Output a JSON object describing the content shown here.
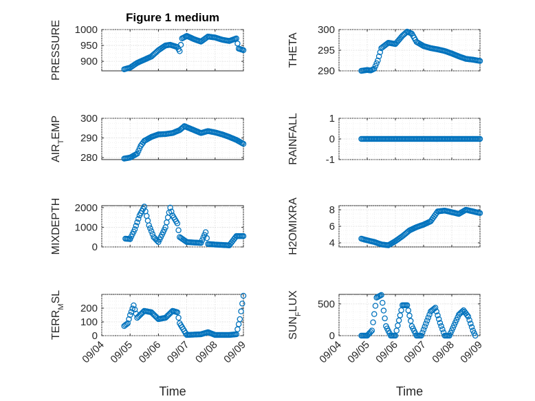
{
  "figure": {
    "title": "Figure 1 medium",
    "marker_color": "#0072BD"
  },
  "chart_data": [
    {
      "type": "scatter",
      "title": "Figure 1 medium",
      "ylabel": "PRESSURE",
      "ylim": [
        870,
        1000
      ],
      "yticks": [
        900,
        950,
        1000
      ],
      "xlim": [
        "09/04",
        "09/09"
      ],
      "grid": true,
      "x": [
        "09/04 19:00",
        "09/05 00:00",
        "09/05 06:00",
        "09/05 12:00",
        "09/05 18:00",
        "09/06 00:00",
        "09/06 06:00",
        "09/06 10:00",
        "09/06 16:00",
        "09/06 18:00",
        "09/06 20:00",
        "09/07 00:00",
        "09/07 06:00",
        "09/07 12:00",
        "09/07 18:00",
        "09/08 00:00",
        "09/08 06:00",
        "09/08 12:00",
        "09/08 18:00",
        "09/08 20:00",
        "09/09 00:00"
      ],
      "y": [
        875,
        880,
        895,
        905,
        915,
        935,
        950,
        952,
        945,
        932,
        972,
        980,
        970,
        962,
        978,
        975,
        968,
        964,
        972,
        940,
        935
      ]
    },
    {
      "type": "scatter",
      "title": "",
      "ylabel": "THETA",
      "ylim": [
        290,
        300
      ],
      "yticks": [
        290,
        295,
        300
      ],
      "xlim": [
        "09/04",
        "09/09"
      ],
      "grid": true,
      "x": [
        "09/04 19:00",
        "09/05 00:00",
        "09/05 03:00",
        "09/05 06:00",
        "09/05 09:00",
        "09/05 12:00",
        "09/05 18:00",
        "09/06 00:00",
        "09/06 06:00",
        "09/06 10:00",
        "09/06 14:00",
        "09/06 18:00",
        "09/07 00:00",
        "09/07 06:00",
        "09/07 12:00",
        "09/07 18:00",
        "09/08 00:00",
        "09/08 06:00",
        "09/08 12:00",
        "09/08 18:00",
        "09/09 00:00"
      ],
      "y": [
        290,
        290.2,
        290.1,
        290.5,
        292.5,
        295.5,
        296.8,
        296.5,
        298.5,
        299.5,
        299,
        297,
        296,
        295.5,
        295.2,
        294.8,
        294.2,
        293.5,
        292.9,
        292.7,
        292.4
      ]
    },
    {
      "type": "scatter",
      "title": "",
      "ylabel": "AIR_TEMP",
      "ylim": [
        279,
        300
      ],
      "yticks": [
        280,
        290,
        300
      ],
      "xlim": [
        "09/04",
        "09/09"
      ],
      "grid": true,
      "x": [
        "09/04 19:00",
        "09/05 00:00",
        "09/05 06:00",
        "09/05 09:00",
        "09/05 12:00",
        "09/05 18:00",
        "09/06 00:00",
        "09/06 06:00",
        "09/06 12:00",
        "09/06 18:00",
        "09/06 22:00",
        "09/07 06:00",
        "09/07 12:00",
        "09/07 18:00",
        "09/08 00:00",
        "09/08 06:00",
        "09/08 12:00",
        "09/08 18:00",
        "09/09 00:00"
      ],
      "y": [
        279.5,
        280,
        282,
        286,
        288.5,
        290.5,
        291.8,
        292,
        292.5,
        294,
        296,
        294,
        292.5,
        293.5,
        292.8,
        291.8,
        290.5,
        289,
        287
      ]
    },
    {
      "type": "scatter",
      "title": "",
      "ylabel": "RAINFALL",
      "ylim": [
        -1,
        1
      ],
      "yticks": [
        -1,
        0,
        1
      ],
      "xlim": [
        "09/04",
        "09/09"
      ],
      "grid": true,
      "x": [
        "09/04 19:00",
        "09/05 12:00",
        "09/06 00:00",
        "09/06 12:00",
        "09/07 00:00",
        "09/07 12:00",
        "09/08 00:00",
        "09/08 12:00",
        "09/09 00:00"
      ],
      "y": [
        0,
        0,
        0,
        0,
        0,
        0,
        0,
        0,
        0
      ]
    },
    {
      "type": "scatter",
      "title": "",
      "ylabel": "MIXDEPTH",
      "ylim": [
        0,
        2100
      ],
      "yticks": [
        0,
        1000,
        2000
      ],
      "xlim": [
        "09/04",
        "09/09"
      ],
      "grid": true,
      "x": [
        "09/04 20:00",
        "09/05 00:00",
        "09/05 04:00",
        "09/05 08:00",
        "09/05 12:00",
        "09/05 16:00",
        "09/05 20:00",
        "09/06 00:00",
        "09/06 06:00",
        "09/06 10:00",
        "09/06 12:00",
        "09/06 16:00",
        "09/06 18:00",
        "09/07 00:00",
        "09/07 12:00",
        "09/07 16:00",
        "09/07 18:00",
        "09/08 00:00",
        "09/08 12:00",
        "09/08 18:00",
        "09/09 00:00"
      ],
      "y": [
        420,
        400,
        900,
        1600,
        2050,
        1100,
        500,
        250,
        1000,
        2000,
        1600,
        1200,
        500,
        250,
        200,
        750,
        150,
        120,
        80,
        550,
        550
      ]
    },
    {
      "type": "scatter",
      "title": "",
      "ylabel": "H2OMIXRA",
      "ylim": [
        3.5,
        8.5
      ],
      "yticks": [
        4,
        6,
        8
      ],
      "xlim": [
        "09/04",
        "09/09"
      ],
      "grid": true,
      "x": [
        "09/04 19:00",
        "09/05 00:00",
        "09/05 06:00",
        "09/05 12:00",
        "09/05 18:00",
        "09/06 00:00",
        "09/06 06:00",
        "09/06 12:00",
        "09/06 18:00",
        "09/07 00:00",
        "09/07 06:00",
        "09/07 12:00",
        "09/07 18:00",
        "09/08 00:00",
        "09/08 06:00",
        "09/08 12:00",
        "09/08 18:00",
        "09/09 00:00"
      ],
      "y": [
        4.5,
        4.3,
        4.1,
        3.8,
        3.7,
        4.2,
        4.8,
        5.5,
        5.9,
        6.2,
        6.6,
        7.8,
        7.9,
        7.7,
        7.5,
        8.0,
        7.8,
        7.6
      ]
    },
    {
      "type": "scatter",
      "title": "",
      "ylabel": "TERR_MSL",
      "ylim": [
        0,
        300
      ],
      "yticks": [
        0,
        100,
        200
      ],
      "xlim": [
        "09/04",
        "09/09"
      ],
      "grid": true,
      "x": [
        "09/04 19:00",
        "09/04 22:00",
        "09/05 00:00",
        "09/05 03:00",
        "09/05 06:00",
        "09/05 12:00",
        "09/05 18:00",
        "09/06 00:00",
        "09/06 06:00",
        "09/06 12:00",
        "09/06 16:00",
        "09/06 18:00",
        "09/07 00:00",
        "09/07 12:00",
        "09/07 18:00",
        "09/08 00:00",
        "09/08 12:00",
        "09/08 18:00",
        "09/08 21:00",
        "09/09 00:00"
      ],
      "y": [
        70,
        90,
        150,
        220,
        130,
        180,
        170,
        120,
        130,
        180,
        170,
        90,
        5,
        10,
        25,
        5,
        5,
        10,
        120,
        290
      ]
    },
    {
      "type": "scatter",
      "title": "",
      "ylabel": "SUN_FLUX",
      "ylim": [
        0,
        650
      ],
      "yticks": [
        0,
        500
      ],
      "xlim": [
        "09/04",
        "09/09"
      ],
      "grid": true,
      "x": [
        "09/04 19:00",
        "09/05 00:00",
        "09/05 04:00",
        "09/05 08:00",
        "09/05 12:00",
        "09/05 16:00",
        "09/05 20:00",
        "09/06 00:00",
        "09/06 06:00",
        "09/06 10:00",
        "09/06 14:00",
        "09/06 18:00",
        "09/06 22:00",
        "09/07 06:00",
        "09/07 10:00",
        "09/07 14:00",
        "09/07 18:00",
        "09/07 22:00",
        "09/08 06:00",
        "09/08 10:00",
        "09/08 14:00",
        "09/08 18:00",
        "09/08 20:00"
      ],
      "y": [
        0,
        0,
        80,
        600,
        640,
        150,
        0,
        0,
        480,
        480,
        150,
        0,
        0,
        380,
        440,
        200,
        0,
        0,
        330,
        400,
        300,
        80,
        0
      ]
    }
  ],
  "xaxis": {
    "label": "Time",
    "ticks": [
      "09/04",
      "09/05",
      "09/06",
      "09/07",
      "09/08",
      "09/09"
    ]
  }
}
